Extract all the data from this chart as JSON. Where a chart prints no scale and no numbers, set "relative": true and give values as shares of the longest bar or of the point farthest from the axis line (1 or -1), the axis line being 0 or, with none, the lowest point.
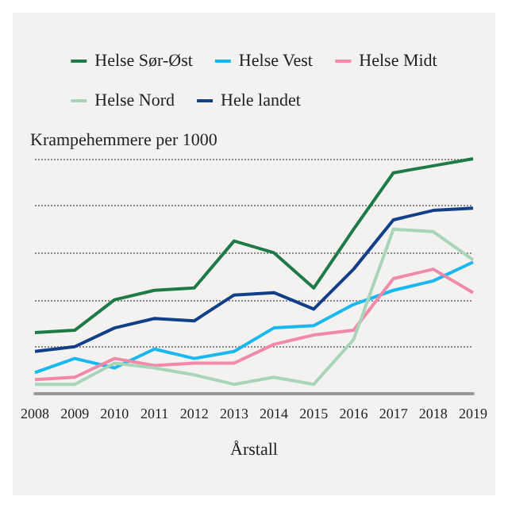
{
  "chart_data": {
    "type": "line",
    "relative": true,
    "ylabel": "Krampehemmere per 1000",
    "xlabel": "Årstall",
    "categories": [
      "2008",
      "2009",
      "2010",
      "2011",
      "2012",
      "2013",
      "2014",
      "2015",
      "2016",
      "2017",
      "2018",
      "2019"
    ],
    "series": [
      {
        "name": "Helse Sør-Øst",
        "color": "#1e7a46",
        "values": [
          0.26,
          0.27,
          0.4,
          0.44,
          0.45,
          0.65,
          0.6,
          0.45,
          0.7,
          0.94,
          0.97,
          1.0
        ]
      },
      {
        "name": "Helse Vest",
        "color": "#1ab8f0",
        "values": [
          0.09,
          0.15,
          0.11,
          0.19,
          0.15,
          0.18,
          0.28,
          0.29,
          0.38,
          0.44,
          0.48,
          0.56
        ]
      },
      {
        "name": "Helse Midt",
        "color": "#f08aa8",
        "values": [
          0.06,
          0.07,
          0.15,
          0.12,
          0.13,
          0.13,
          0.21,
          0.25,
          0.27,
          0.49,
          0.53,
          0.43
        ]
      },
      {
        "name": "Helse Nord",
        "color": "#a8d5b8",
        "values": [
          0.04,
          0.04,
          0.13,
          0.11,
          0.08,
          0.04,
          0.07,
          0.04,
          0.23,
          0.7,
          0.69,
          0.57
        ]
      },
      {
        "name": "Hele landet",
        "color": "#123f8a",
        "values": [
          0.18,
          0.2,
          0.28,
          0.32,
          0.31,
          0.42,
          0.43,
          0.36,
          0.53,
          0.74,
          0.78,
          0.79
        ]
      }
    ],
    "grid": "y",
    "legend": "top",
    "marker": "none",
    "line_style": "solid"
  }
}
